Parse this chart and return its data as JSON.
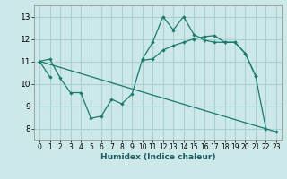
{
  "xlabel": "Humidex (Indice chaleur)",
  "bg_color": "#cce8e8",
  "grid_color": "#aad0d0",
  "line_color": "#1a7a6e",
  "xlim": [
    -0.5,
    23.5
  ],
  "ylim": [
    7.5,
    13.5
  ],
  "xticks": [
    0,
    1,
    2,
    3,
    4,
    5,
    6,
    7,
    8,
    9,
    10,
    11,
    12,
    13,
    14,
    15,
    16,
    17,
    18,
    19,
    20,
    21,
    22,
    23
  ],
  "yticks": [
    8,
    9,
    10,
    11,
    12,
    13
  ],
  "line1_x": [
    0,
    1,
    2,
    3,
    4,
    5,
    6,
    7,
    8,
    9,
    10,
    11,
    12,
    13,
    14,
    15,
    16,
    17,
    18,
    19,
    20,
    21,
    22
  ],
  "line1_y": [
    11.0,
    11.1,
    10.25,
    9.6,
    9.6,
    8.45,
    8.55,
    9.3,
    9.1,
    9.55,
    11.1,
    11.85,
    13.0,
    12.4,
    13.0,
    12.2,
    11.95,
    11.85,
    11.85,
    11.85,
    11.35,
    10.35,
    8.0
  ],
  "line2_x": [
    0,
    1,
    10,
    11,
    12,
    13,
    14,
    15,
    16,
    17,
    18,
    19,
    20,
    21
  ],
  "line2_y": [
    11.0,
    10.3,
    11.05,
    11.1,
    11.5,
    11.7,
    11.85,
    12.0,
    12.1,
    12.15,
    11.85,
    11.85,
    11.35,
    10.35
  ],
  "line3_x": [
    0,
    23
  ],
  "line3_y": [
    11.0,
    7.85
  ]
}
